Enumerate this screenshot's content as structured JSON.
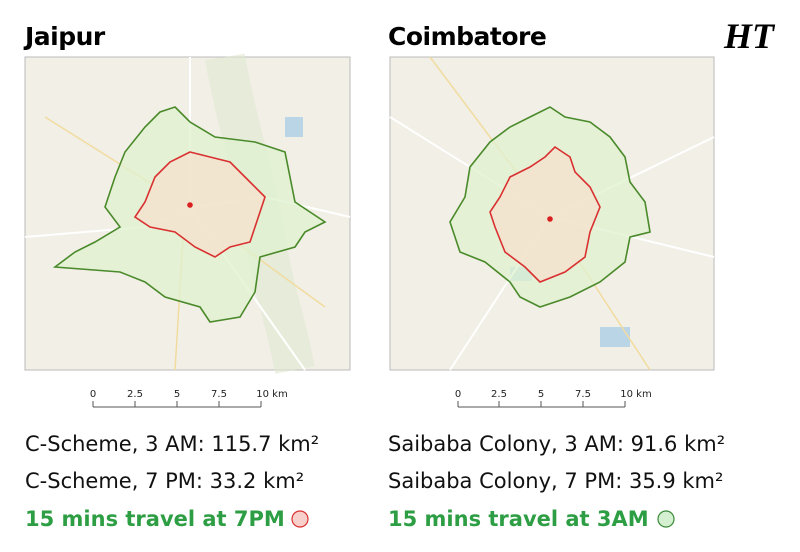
{
  "logo": "HT",
  "maps": [
    {
      "city": "Jaipur",
      "scale": [
        "0",
        "2.5",
        "5",
        "7.5",
        "10 km"
      ],
      "stats": [
        "C-Scheme, 3 AM: 115.7 km²",
        "C-Scheme, 7 PM: 33.2 km²"
      ],
      "legend": "15 mins travel at 7PM"
    },
    {
      "city": "Coimbatore",
      "scale": [
        "0",
        "2.5",
        "5",
        "7.5",
        "10 km"
      ],
      "stats": [
        "Saibaba Colony, 3 AM: 91.6 km²",
        "Saibaba Colony, 7 PM: 35.9 km²"
      ],
      "legend": "15 mins travel at 3AM"
    }
  ]
}
